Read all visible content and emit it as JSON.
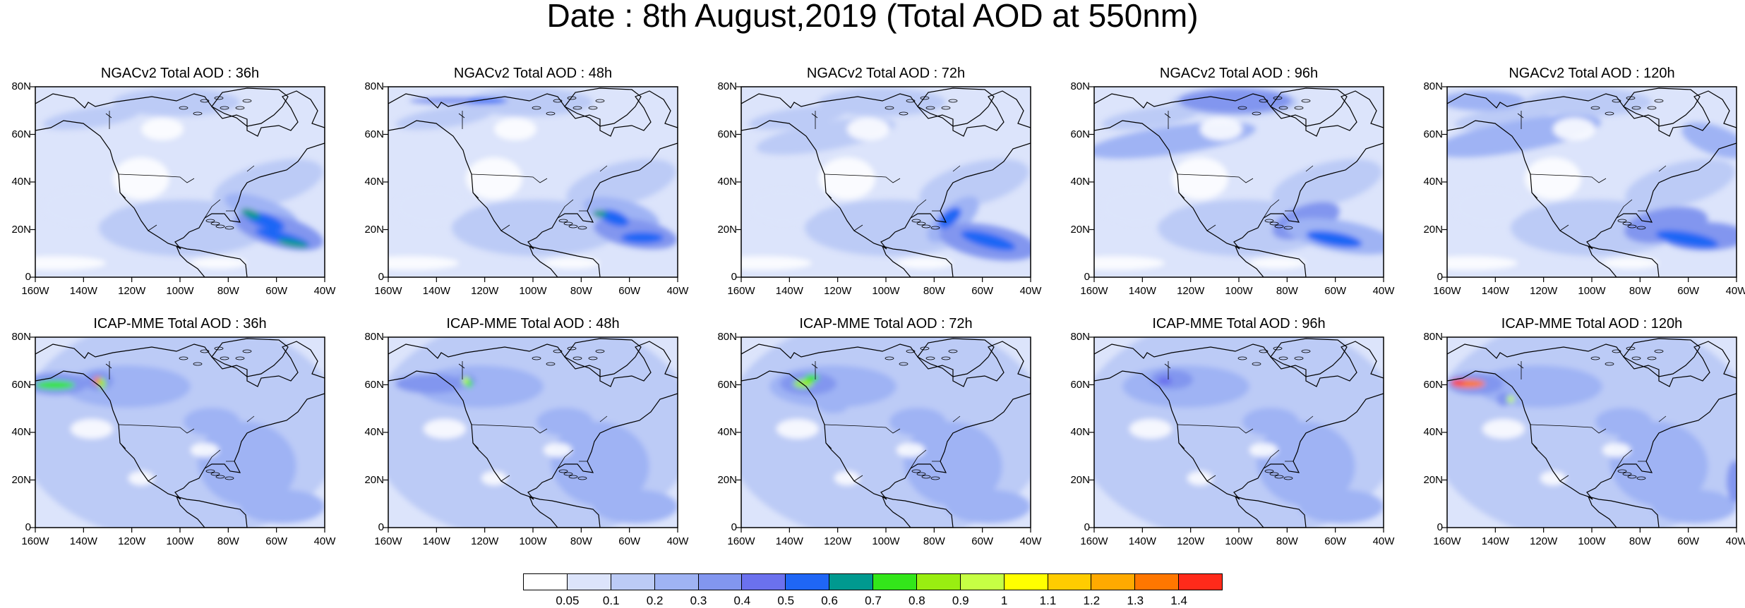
{
  "title": "Date : 8th August,2019 (Total AOD at 550nm)",
  "axes": {
    "y_ticks": [
      "0",
      "20N",
      "40N",
      "60N",
      "80N"
    ],
    "x_ticks": [
      "160W",
      "140W",
      "120W",
      "100W",
      "80W",
      "60W",
      "40W"
    ]
  },
  "panels": [
    {
      "title": "NGACv2 Total AOD : 36h"
    },
    {
      "title": "NGACv2 Total AOD : 48h"
    },
    {
      "title": "NGACv2 Total AOD : 72h"
    },
    {
      "title": "NGACv2 Total AOD : 96h"
    },
    {
      "title": "NGACv2 Total AOD : 120h"
    },
    {
      "title": "ICAP-MME Total AOD : 36h"
    },
    {
      "title": "ICAP-MME Total AOD : 48h"
    },
    {
      "title": "ICAP-MME Total AOD : 72h"
    },
    {
      "title": "ICAP-MME Total AOD : 96h"
    },
    {
      "title": "ICAP-MME Total AOD : 120h"
    }
  ],
  "colorbar": {
    "colors": [
      "#ffffff",
      "#dce4fb",
      "#bccbf6",
      "#9fb3f4",
      "#8296ef",
      "#6b71ee",
      "#1f66f5",
      "#00998f",
      "#33e61a",
      "#99ee11",
      "#c6ff44",
      "#ffff00",
      "#ffcc00",
      "#ffaa00",
      "#ff7700",
      "#ff2a1a"
    ],
    "labels": [
      "0.05",
      "0.1",
      "0.2",
      "0.3",
      "0.4",
      "0.5",
      "0.6",
      "0.7",
      "0.8",
      "0.9",
      "1",
      "1.1",
      "1.2",
      "1.3",
      "1.4"
    ]
  }
}
